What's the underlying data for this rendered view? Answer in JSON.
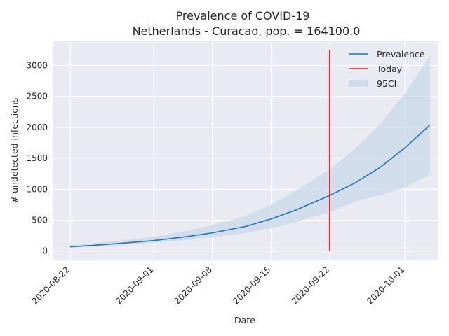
{
  "chart_data": {
    "type": "line",
    "title": "Prevalence of COVID-19",
    "subtitle": "Netherlands - Curacao, pop. = 164100.0",
    "xlabel": "Date",
    "ylabel": "# undetected infections",
    "x_ticks": [
      "2020-08-22",
      "2020-09-01",
      "2020-09-08",
      "2020-09-15",
      "2020-09-22",
      "2020-10-01"
    ],
    "y_ticks": [
      0,
      500,
      1000,
      1500,
      2000,
      2500,
      3000
    ],
    "xlim": [
      "2020-08-20",
      "2020-10-05"
    ],
    "ylim": [
      -150,
      3400
    ],
    "grid": true,
    "legend_position": "top-right",
    "series": [
      {
        "name": "Prevalence",
        "type": "line",
        "color": "#1f77b4",
        "x": [
          "2020-08-22",
          "2020-08-25",
          "2020-08-28",
          "2020-09-01",
          "2020-09-05",
          "2020-09-08",
          "2020-09-12",
          "2020-09-15",
          "2020-09-18",
          "2020-09-22",
          "2020-09-25",
          "2020-09-28",
          "2020-10-01",
          "2020-10-04"
        ],
        "values": [
          70,
          95,
          125,
          170,
          235,
          295,
          400,
          520,
          665,
          900,
          1100,
          1350,
          1670,
          2040
        ]
      },
      {
        "name": "95CI",
        "type": "band",
        "color": "#c9d8e8",
        "x": [
          "2020-08-22",
          "2020-08-25",
          "2020-08-28",
          "2020-09-01",
          "2020-09-05",
          "2020-09-08",
          "2020-09-12",
          "2020-09-15",
          "2020-09-18",
          "2020-09-22",
          "2020-09-25",
          "2020-09-28",
          "2020-10-01",
          "2020-10-04"
        ],
        "lower": [
          55,
          75,
          100,
          135,
          180,
          230,
          290,
          370,
          470,
          630,
          800,
          900,
          1030,
          1240
        ],
        "upper": [
          95,
          130,
          170,
          230,
          330,
          420,
          570,
          750,
          980,
          1320,
          1650,
          2050,
          2550,
          3150
        ]
      },
      {
        "name": "Today",
        "type": "vline",
        "color": "#e31a1c",
        "x": "2020-09-22",
        "ymin": 0,
        "ymax": 3250
      }
    ]
  }
}
